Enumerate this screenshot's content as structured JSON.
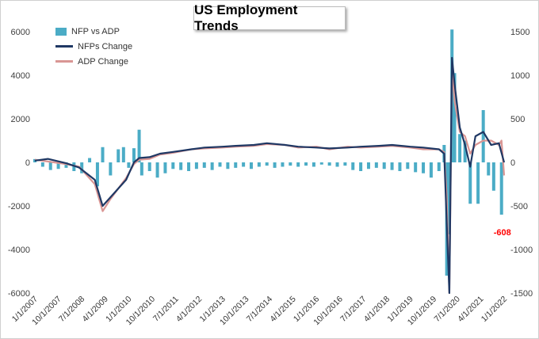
{
  "chart_data": {
    "type": "bar",
    "title": "US Employment Trends",
    "annotation": "-608",
    "legend": {
      "placement": "top-left",
      "entries": [
        {
          "label": "NFP vs ADP",
          "kind": "bar",
          "color": "#4bacc6"
        },
        {
          "label": "NFPs Change",
          "kind": "line",
          "color": "#1f3864"
        },
        {
          "label": "ADP Change",
          "kind": "line",
          "color": "#d99694"
        }
      ]
    },
    "y_left": {
      "ticks": [
        6000,
        4000,
        2000,
        0,
        -2000,
        -4000,
        -6000
      ],
      "ylim": [
        -6000,
        6000
      ]
    },
    "y_right": {
      "ticks": [
        1500,
        1000,
        500,
        0,
        -500,
        -1000,
        -1500
      ],
      "ylim": [
        -1500,
        1500
      ]
    },
    "x_tick_labels": [
      "1/1/2007",
      "10/1/2007",
      "7/1/2008",
      "4/1/2009",
      "1/1/2010",
      "10/1/2010",
      "7/1/2011",
      "4/1/2012",
      "1/1/2013",
      "10/1/2013",
      "7/1/2014",
      "4/1/2015",
      "1/1/2016",
      "10/1/2016",
      "7/1/2017",
      "4/1/2018",
      "1/1/2019",
      "10/1/2019",
      "7/1/2020",
      "4/1/2021",
      "1/1/2022"
    ],
    "grid": false,
    "series": [
      {
        "name": "NFP vs ADP",
        "axis": "left",
        "type": "bar",
        "points": [
          [
            "2007-01",
            150
          ],
          [
            "2007-04",
            -200
          ],
          [
            "2007-07",
            -350
          ],
          [
            "2007-10",
            -300
          ],
          [
            "2008-01",
            -250
          ],
          [
            "2008-04",
            -400
          ],
          [
            "2008-07",
            -500
          ],
          [
            "2008-10",
            200
          ],
          [
            "2009-01",
            -1100
          ],
          [
            "2009-03",
            700
          ],
          [
            "2009-06",
            -600
          ],
          [
            "2009-09",
            600
          ],
          [
            "2009-11",
            700
          ],
          [
            "2010-01",
            -250
          ],
          [
            "2010-03",
            650
          ],
          [
            "2010-05",
            1500
          ],
          [
            "2010-06",
            -600
          ],
          [
            "2010-09",
            -400
          ],
          [
            "2010-12",
            -700
          ],
          [
            "2011-03",
            -500
          ],
          [
            "2011-06",
            -300
          ],
          [
            "2011-09",
            -350
          ],
          [
            "2011-12",
            -400
          ],
          [
            "2012-03",
            -300
          ],
          [
            "2012-06",
            -250
          ],
          [
            "2012-09",
            -350
          ],
          [
            "2012-12",
            -200
          ],
          [
            "2013-03",
            -300
          ],
          [
            "2013-06",
            -250
          ],
          [
            "2013-09",
            -200
          ],
          [
            "2013-12",
            -300
          ],
          [
            "2014-03",
            -200
          ],
          [
            "2014-06",
            -150
          ],
          [
            "2014-09",
            -250
          ],
          [
            "2014-12",
            -200
          ],
          [
            "2015-03",
            -150
          ],
          [
            "2015-06",
            -200
          ],
          [
            "2015-09",
            -150
          ],
          [
            "2015-12",
            -200
          ],
          [
            "2016-03",
            -100
          ],
          [
            "2016-06",
            -150
          ],
          [
            "2016-09",
            -200
          ],
          [
            "2016-12",
            -150
          ],
          [
            "2017-03",
            -350
          ],
          [
            "2017-06",
            -400
          ],
          [
            "2017-09",
            -300
          ],
          [
            "2017-12",
            -250
          ],
          [
            "2018-03",
            -300
          ],
          [
            "2018-06",
            -350
          ],
          [
            "2018-09",
            -400
          ],
          [
            "2018-12",
            -300
          ],
          [
            "2019-03",
            -450
          ],
          [
            "2019-06",
            -500
          ],
          [
            "2019-09",
            -700
          ],
          [
            "2019-12",
            -400
          ],
          [
            "2020-02",
            800
          ],
          [
            "2020-03",
            -5200
          ],
          [
            "2020-04",
            -3300
          ],
          [
            "2020-05",
            6100
          ],
          [
            "2020-06",
            4100
          ],
          [
            "2020-08",
            1300
          ],
          [
            "2020-10",
            1000
          ],
          [
            "2020-12",
            -1900
          ],
          [
            "2021-03",
            -1900
          ],
          [
            "2021-05",
            2400
          ],
          [
            "2021-07",
            -600
          ],
          [
            "2021-09",
            -1300
          ],
          [
            "2021-12",
            -2400
          ]
        ]
      },
      {
        "name": "NFPs Change",
        "axis": "right",
        "type": "line",
        "points": [
          [
            "2007-01",
            20
          ],
          [
            "2007-06",
            40
          ],
          [
            "2008-01",
            -10
          ],
          [
            "2008-06",
            -60
          ],
          [
            "2008-12",
            -200
          ],
          [
            "2009-03",
            -500
          ],
          [
            "2009-06",
            -400
          ],
          [
            "2009-12",
            -200
          ],
          [
            "2010-03",
            0
          ],
          [
            "2010-05",
            50
          ],
          [
            "2010-09",
            60
          ],
          [
            "2011-01",
            100
          ],
          [
            "2011-06",
            120
          ],
          [
            "2012-01",
            150
          ],
          [
            "2012-06",
            170
          ],
          [
            "2013-01",
            180
          ],
          [
            "2013-06",
            190
          ],
          [
            "2014-01",
            200
          ],
          [
            "2014-06",
            220
          ],
          [
            "2015-01",
            200
          ],
          [
            "2015-06",
            180
          ],
          [
            "2016-01",
            170
          ],
          [
            "2016-06",
            160
          ],
          [
            "2017-01",
            170
          ],
          [
            "2017-06",
            180
          ],
          [
            "2018-01",
            190
          ],
          [
            "2018-06",
            200
          ],
          [
            "2019-01",
            180
          ],
          [
            "2019-06",
            170
          ],
          [
            "2019-12",
            150
          ],
          [
            "2020-02",
            100
          ],
          [
            "2020-03",
            -700
          ],
          [
            "2020-04",
            -1500
          ],
          [
            "2020-05",
            1200
          ],
          [
            "2020-06",
            900
          ],
          [
            "2020-08",
            400
          ],
          [
            "2020-10",
            200
          ],
          [
            "2020-12",
            -50
          ],
          [
            "2021-02",
            300
          ],
          [
            "2021-05",
            350
          ],
          [
            "2021-08",
            200
          ],
          [
            "2021-11",
            220
          ],
          [
            "2022-01",
            0
          ]
        ]
      },
      {
        "name": "ADP Change",
        "axis": "right",
        "type": "line",
        "points": [
          [
            "2007-01",
            30
          ],
          [
            "2007-06",
            10
          ],
          [
            "2008-01",
            -20
          ],
          [
            "2008-06",
            -50
          ],
          [
            "2008-12",
            -250
          ],
          [
            "2009-03",
            -560
          ],
          [
            "2009-06",
            -420
          ],
          [
            "2009-12",
            -180
          ],
          [
            "2010-03",
            -20
          ],
          [
            "2010-05",
            30
          ],
          [
            "2010-09",
            40
          ],
          [
            "2011-01",
            90
          ],
          [
            "2011-06",
            110
          ],
          [
            "2012-01",
            150
          ],
          [
            "2012-06",
            160
          ],
          [
            "2013-01",
            170
          ],
          [
            "2013-06",
            180
          ],
          [
            "2014-01",
            190
          ],
          [
            "2014-06",
            210
          ],
          [
            "2015-01",
            200
          ],
          [
            "2015-06",
            170
          ],
          [
            "2016-01",
            180
          ],
          [
            "2016-06",
            150
          ],
          [
            "2017-01",
            180
          ],
          [
            "2017-06",
            170
          ],
          [
            "2018-01",
            180
          ],
          [
            "2018-06",
            190
          ],
          [
            "2019-01",
            170
          ],
          [
            "2019-06",
            150
          ],
          [
            "2019-12",
            150
          ],
          [
            "2020-02",
            120
          ],
          [
            "2020-03",
            -400
          ],
          [
            "2020-04",
            -1500
          ],
          [
            "2020-05",
            1100
          ],
          [
            "2020-06",
            700
          ],
          [
            "2020-08",
            350
          ],
          [
            "2020-10",
            300
          ],
          [
            "2020-12",
            100
          ],
          [
            "2021-02",
            200
          ],
          [
            "2021-05",
            250
          ],
          [
            "2021-08",
            250
          ],
          [
            "2021-11",
            200
          ],
          [
            "2021-12",
            250
          ],
          [
            "2022-01",
            -150
          ]
        ]
      }
    ]
  }
}
